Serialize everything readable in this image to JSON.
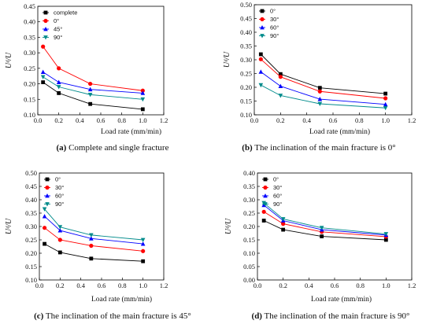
{
  "chart_data": [
    {
      "type": "line",
      "caption_letter": "(a)",
      "caption_text": " Complete and single fracture",
      "xlabel": "Load rate (mm/min)",
      "ylabel": "Uᵈ/U",
      "xlim": [
        0.0,
        1.2
      ],
      "xticks": [
        "0.0",
        "0.2",
        "0.4",
        "0.6",
        "0.8",
        "1.0",
        "1.2"
      ],
      "ylim": [
        0.1,
        0.45
      ],
      "yticks": [
        "0.10",
        "0.15",
        "0.20",
        "0.25",
        "0.30",
        "0.35",
        "0.40",
        "0.45"
      ],
      "x": [
        0.05,
        0.2,
        0.5,
        1.0
      ],
      "series": [
        {
          "name": "complete",
          "color": "#000000",
          "marker": "square",
          "values": [
            0.205,
            0.17,
            0.135,
            0.118
          ]
        },
        {
          "name": "0°",
          "color": "#ff0000",
          "marker": "circle",
          "values": [
            0.32,
            0.25,
            0.2,
            0.178
          ]
        },
        {
          "name": "45°",
          "color": "#0000ff",
          "marker": "triangle-up",
          "values": [
            0.238,
            0.205,
            0.182,
            0.17
          ]
        },
        {
          "name": "90°",
          "color": "#008b8b",
          "marker": "triangle-down",
          "values": [
            0.222,
            0.19,
            0.165,
            0.15
          ]
        }
      ]
    },
    {
      "type": "line",
      "caption_letter": "(b)",
      "caption_text": " The inclination of the main fracture is 0°",
      "xlabel": "Load rate (mm/min)",
      "ylabel": "Uᵈ/U",
      "xlim": [
        0.0,
        1.2
      ],
      "xticks": [
        "0.0",
        "0.2",
        "0.4",
        "0.6",
        "0.8",
        "1.0",
        "1.2"
      ],
      "ylim": [
        0.1,
        0.5
      ],
      "yticks": [
        "0.10",
        "0.15",
        "0.20",
        "0.25",
        "0.30",
        "0.35",
        "0.40",
        "0.45",
        "0.50"
      ],
      "x": [
        0.05,
        0.2,
        0.5,
        1.0
      ],
      "series": [
        {
          "name": "0°",
          "color": "#000000",
          "marker": "square",
          "values": [
            0.32,
            0.248,
            0.198,
            0.177
          ]
        },
        {
          "name": "30°",
          "color": "#ff0000",
          "marker": "circle",
          "values": [
            0.302,
            0.238,
            0.185,
            0.16
          ]
        },
        {
          "name": "60°",
          "color": "#0000ff",
          "marker": "triangle-up",
          "values": [
            0.256,
            0.204,
            0.157,
            0.138
          ]
        },
        {
          "name": "90°",
          "color": "#008b8b",
          "marker": "triangle-down",
          "values": [
            0.208,
            0.17,
            0.14,
            0.125
          ]
        }
      ]
    },
    {
      "type": "line",
      "caption_letter": "(c)",
      "caption_text": " The inclination of the main fracture is 45°",
      "xlabel": "Load rate (mm/min)",
      "ylabel": "Uᵈ/U",
      "xlim": [
        0.0,
        1.2
      ],
      "xticks": [
        "0.0",
        "0.2",
        "0.4",
        "0.6",
        "0.8",
        "1.0",
        "1.2"
      ],
      "ylim": [
        0.1,
        0.5
      ],
      "yticks": [
        "0.10",
        "0.15",
        "0.20",
        "0.25",
        "0.30",
        "0.35",
        "0.40",
        "0.45",
        "0.50"
      ],
      "x": [
        0.05,
        0.2,
        0.5,
        1.0
      ],
      "series": [
        {
          "name": "0°",
          "color": "#000000",
          "marker": "square",
          "values": [
            0.235,
            0.203,
            0.18,
            0.17
          ]
        },
        {
          "name": "30°",
          "color": "#ff0000",
          "marker": "circle",
          "values": [
            0.295,
            0.25,
            0.228,
            0.208
          ]
        },
        {
          "name": "60°",
          "color": "#0000ff",
          "marker": "triangle-up",
          "values": [
            0.338,
            0.285,
            0.255,
            0.235
          ]
        },
        {
          "name": "90°",
          "color": "#008b8b",
          "marker": "triangle-down",
          "values": [
            0.365,
            0.298,
            0.268,
            0.25
          ]
        }
      ]
    },
    {
      "type": "line",
      "caption_letter": "(d)",
      "caption_text": " The inclination of the main fracture is 90°",
      "xlabel": "Load rate (mm/min)",
      "ylabel": "Uᵈ/U",
      "xlim": [
        0.0,
        1.2
      ],
      "xticks": [
        "0.0",
        "0.2",
        "0.4",
        "0.6",
        "0.8",
        "1.0",
        "1.2"
      ],
      "ylim": [
        0.0,
        0.4
      ],
      "yticks": [
        "0.00",
        "0.05",
        "0.10",
        "0.15",
        "0.20",
        "0.25",
        "0.30",
        "0.35",
        "0.40"
      ],
      "x": [
        0.05,
        0.2,
        0.5,
        1.0
      ],
      "series": [
        {
          "name": "0°",
          "color": "#000000",
          "marker": "square",
          "values": [
            0.222,
            0.188,
            0.163,
            0.15
          ]
        },
        {
          "name": "30°",
          "color": "#ff0000",
          "marker": "circle",
          "values": [
            0.255,
            0.21,
            0.18,
            0.162
          ]
        },
        {
          "name": "60°",
          "color": "#0000ff",
          "marker": "triangle-up",
          "values": [
            0.28,
            0.222,
            0.188,
            0.168
          ]
        },
        {
          "name": "90°",
          "color": "#008b8b",
          "marker": "triangle-down",
          "values": [
            0.288,
            0.228,
            0.195,
            0.172
          ]
        }
      ]
    }
  ]
}
